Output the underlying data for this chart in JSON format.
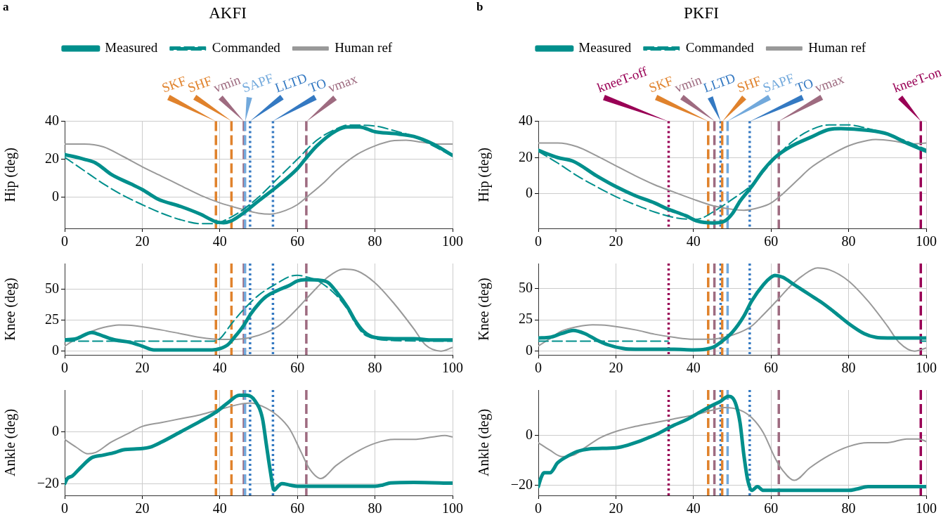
{
  "chart_data": [
    {
      "type": "line",
      "title": "AKFI",
      "ylabel": "Hip (deg)",
      "annotations": [
        "a"
      ],
      "legend": "top",
      "grid": true,
      "xlim": [
        0,
        100
      ],
      "xticks": [
        0,
        20,
        40,
        60,
        80,
        100
      ],
      "ylim": [
        -16.5,
        40
      ],
      "yticks": [
        0,
        20,
        40
      ],
      "series": [
        {
          "name": "Measured",
          "color": "#008f8c",
          "x": [
            0,
            5,
            8,
            12,
            17,
            20,
            24,
            30,
            35,
            39,
            41,
            43,
            45,
            47,
            50,
            55,
            60,
            62,
            65,
            70,
            73,
            76,
            80,
            85,
            90,
            95,
            100
          ],
          "values": [
            22.5,
            20,
            18,
            12,
            7,
            4,
            -1,
            -5,
            -9,
            -13,
            -13.5,
            -12.5,
            -10,
            -7,
            -2,
            6,
            15,
            20,
            27,
            35,
            37,
            37,
            34.5,
            33.5,
            32,
            28,
            22
          ]
        },
        {
          "name": "Commanded",
          "color": "#008f8c",
          "line_style": "dashed",
          "x": [
            0,
            5,
            10,
            15,
            20,
            25,
            30,
            35,
            39,
            41,
            45,
            50,
            55,
            60,
            65,
            70,
            73,
            80,
            85,
            90,
            95,
            100
          ],
          "values": [
            21,
            14,
            7,
            1,
            -4,
            -8.5,
            -12,
            -14,
            -14,
            -12.5,
            -8,
            0,
            10,
            20,
            30,
            36,
            38,
            37.5,
            35,
            32,
            27,
            21.5
          ]
        },
        {
          "name": "Human ref",
          "color": "#999999",
          "x": [
            0,
            5,
            10,
            15,
            20,
            25,
            30,
            35,
            40,
            45,
            50,
            53,
            57,
            60,
            63,
            67,
            70,
            75,
            80,
            85,
            88,
            92,
            96,
            100
          ],
          "values": [
            28,
            28,
            26.5,
            21.5,
            16,
            11,
            6,
            1,
            -3,
            -6,
            -8.5,
            -9,
            -7,
            -4,
            1,
            8,
            14,
            22,
            27,
            29.8,
            30,
            29,
            28,
            28
          ]
        }
      ],
      "ref_lines": [
        {
          "axis": "x",
          "value": 39,
          "label": "SKF",
          "color": "#e0822c",
          "line_style": "dashed"
        },
        {
          "axis": "x",
          "value": 43,
          "label": "SHF",
          "color": "#e0822c",
          "line_style": "dashed"
        },
        {
          "axis": "x",
          "value": 46.2,
          "label": "vmin",
          "color": "#9e6b80",
          "line_style": "dashed"
        },
        {
          "axis": "x",
          "value": 46.5,
          "label": "SAPF",
          "color": "#72a9dc",
          "line_style": "dashed"
        },
        {
          "axis": "x",
          "value": 47.8,
          "label": "LLTD",
          "color": "#3479c2",
          "line_style": "dotted"
        },
        {
          "axis": "x",
          "value": 53.7,
          "label": "TO",
          "color": "#3479c2",
          "line_style": "dotted"
        },
        {
          "axis": "x",
          "value": 62.3,
          "label": "vmax",
          "color": "#9e6b80",
          "line_style": "dashed"
        }
      ]
    },
    {
      "type": "line",
      "ylabel": "Knee (deg)",
      "grid": true,
      "xlim": [
        0,
        100
      ],
      "xticks": [
        0,
        20,
        40,
        60,
        80,
        100
      ],
      "ylim": [
        -3,
        70.5
      ],
      "yticks": [
        0,
        25,
        50
      ],
      "series": [
        {
          "color": "#008f8c",
          "x": [
            0,
            3,
            7,
            10,
            13,
            17,
            20,
            23,
            30,
            38,
            40,
            42,
            44,
            46,
            48,
            50,
            52,
            55,
            58,
            60,
            62,
            66,
            68,
            70,
            73,
            75,
            77,
            80,
            85,
            90,
            95,
            100
          ],
          "values": [
            9,
            10,
            15,
            12,
            9,
            7,
            4,
            1,
            1,
            1,
            2,
            5,
            12,
            20,
            30,
            38,
            44,
            49,
            53,
            56.5,
            57.5,
            57,
            55,
            48,
            35,
            24,
            16,
            11,
            10,
            10,
            9,
            9
          ]
        },
        {
          "color": "#008f8c",
          "line_style": "dashed",
          "x": [
            0,
            38,
            40,
            43,
            46,
            50,
            55,
            58,
            60,
            62,
            65,
            70,
            73,
            75,
            77,
            80,
            85,
            100
          ],
          "values": [
            8,
            8,
            10,
            22,
            33,
            45,
            55,
            60,
            61,
            60,
            57,
            45,
            33,
            22,
            14,
            10,
            8.5,
            8
          ]
        },
        {
          "color": "#999999",
          "x": [
            0,
            3,
            7,
            10,
            14,
            18,
            25,
            30,
            35,
            40,
            44,
            48,
            52,
            55,
            58,
            62,
            65,
            68,
            72,
            75,
            80,
            85,
            90,
            93,
            97,
            100
          ],
          "values": [
            4,
            10,
            16,
            19,
            21,
            20.5,
            17,
            14,
            11,
            9.5,
            9.5,
            11,
            15,
            20,
            28,
            41,
            51,
            60,
            66,
            65,
            55,
            38,
            18,
            5,
            0,
            3
          ]
        }
      ],
      "ref_lines": [
        {
          "axis": "x",
          "value": 39,
          "color": "#e0822c",
          "line_style": "dashed"
        },
        {
          "axis": "x",
          "value": 43,
          "color": "#e0822c",
          "line_style": "dashed"
        },
        {
          "axis": "x",
          "value": 46.2,
          "color": "#9e6b80",
          "line_style": "dashed"
        },
        {
          "axis": "x",
          "value": 46.5,
          "color": "#72a9dc",
          "line_style": "dashed"
        },
        {
          "axis": "x",
          "value": 47.8,
          "color": "#3479c2",
          "line_style": "dotted"
        },
        {
          "axis": "x",
          "value": 53.7,
          "color": "#3479c2",
          "line_style": "dotted"
        },
        {
          "axis": "x",
          "value": 62.3,
          "color": "#9e6b80",
          "line_style": "dashed"
        }
      ]
    },
    {
      "type": "line",
      "ylabel": "Ankle (deg)",
      "grid": true,
      "xlim": [
        0,
        100
      ],
      "xticks": [
        0,
        20,
        40,
        60,
        80,
        100
      ],
      "ylim": [
        -24.5,
        16
      ],
      "yticks": [
        -20,
        0
      ],
      "series": [
        {
          "color": "#008f8c",
          "x": [
            0,
            0.7,
            2,
            4,
            7,
            10,
            13,
            15,
            20,
            22,
            25,
            30,
            35,
            39,
            42,
            45,
            47,
            49,
            51,
            52,
            53,
            54,
            55,
            56,
            58,
            60,
            70,
            80,
            82,
            84,
            90,
            100
          ],
          "values": [
            -20,
            -18,
            -17,
            -14,
            -10,
            -9,
            -8,
            -7,
            -6.5,
            -6,
            -4,
            0,
            4,
            7.5,
            11,
            14,
            14,
            12,
            5,
            -5,
            -15,
            -22.5,
            -21,
            -20,
            -20.5,
            -21,
            -21,
            -21,
            -20.5,
            -19.7,
            -19.5,
            -19.8
          ]
        },
        {
          "color": "#999999",
          "x": [
            0,
            3,
            6,
            8,
            12,
            16,
            20,
            25,
            30,
            35,
            40,
            45,
            48,
            52,
            55,
            58,
            61,
            63,
            66,
            70,
            75,
            80,
            85,
            90,
            95,
            98,
            100
          ],
          "values": [
            -3,
            -6,
            -8.5,
            -8,
            -4,
            -1,
            2,
            3.5,
            5,
            6.5,
            8.5,
            10.5,
            11,
            9,
            6,
            1,
            -8,
            -14,
            -18,
            -13,
            -8,
            -4.5,
            -3,
            -3,
            -2,
            -1.5,
            -2
          ]
        }
      ],
      "ref_lines": [
        {
          "axis": "x",
          "value": 39,
          "color": "#e0822c",
          "line_style": "dashed"
        },
        {
          "axis": "x",
          "value": 43,
          "color": "#e0822c",
          "line_style": "dashed"
        },
        {
          "axis": "x",
          "value": 46.2,
          "color": "#9e6b80",
          "line_style": "dashed"
        },
        {
          "axis": "x",
          "value": 46.5,
          "color": "#72a9dc",
          "line_style": "dashed"
        },
        {
          "axis": "x",
          "value": 47.8,
          "color": "#3479c2",
          "line_style": "dotted"
        },
        {
          "axis": "x",
          "value": 53.7,
          "color": "#3479c2",
          "line_style": "dotted"
        },
        {
          "axis": "x",
          "value": 62.3,
          "color": "#9e6b80",
          "line_style": "dashed"
        }
      ]
    },
    {
      "type": "line",
      "title": "PKFI",
      "ylabel": "Hip (deg)",
      "annotations": [
        "b"
      ],
      "legend": "top",
      "grid": true,
      "xlim": [
        0,
        100
      ],
      "xticks": [
        0,
        20,
        40,
        60,
        80,
        100
      ],
      "ylim": [
        -19,
        40
      ],
      "yticks": [
        0,
        20,
        40
      ],
      "series": [
        {
          "name": "Measured",
          "color": "#008f8c",
          "x": [
            0,
            5,
            9,
            15,
            20,
            25,
            30,
            33,
            38,
            41,
            45,
            48,
            50,
            52,
            55,
            58,
            61,
            65,
            70,
            75,
            78,
            85,
            90,
            95,
            100
          ],
          "values": [
            24,
            20,
            18,
            10,
            4,
            -1,
            -5,
            -8,
            -12,
            -15,
            -16,
            -15,
            -11,
            -4,
            4,
            13,
            20,
            26,
            31,
            35.5,
            36,
            35,
            33,
            28,
            23.5
          ]
        },
        {
          "name": "Commanded",
          "color": "#008f8c",
          "line_style": "dashed",
          "x": [
            0,
            5,
            10,
            15,
            20,
            25,
            30,
            35,
            40,
            42,
            45,
            50,
            55,
            60,
            65,
            70,
            75,
            80,
            85,
            90,
            95,
            100
          ],
          "values": [
            23.5,
            17,
            10,
            4,
            -1.5,
            -6,
            -10,
            -13,
            -14,
            -13.5,
            -10,
            -3,
            5,
            17,
            28,
            35,
            38,
            38,
            36,
            33,
            29,
            24.5
          ]
        },
        {
          "name": "Human ref",
          "color": "#999999",
          "x": [
            0,
            5,
            10,
            15,
            20,
            25,
            30,
            35,
            40,
            45,
            50,
            53,
            57,
            60,
            63,
            67,
            70,
            75,
            80,
            85,
            87,
            92,
            96,
            100
          ],
          "values": [
            28,
            28,
            26,
            21,
            15.5,
            10,
            5,
            1,
            -3,
            -6.5,
            -8.5,
            -9,
            -7.5,
            -5,
            0,
            8,
            14,
            21,
            26.5,
            29.5,
            30,
            29,
            27.5,
            28
          ]
        }
      ],
      "ref_lines": [
        {
          "axis": "x",
          "value": 33.6,
          "label": "kneeT-off",
          "color": "#990055",
          "line_style": "dotted"
        },
        {
          "axis": "x",
          "value": 43.8,
          "label": "SKF",
          "color": "#e0822c",
          "line_style": "dashed"
        },
        {
          "axis": "x",
          "value": 45.4,
          "label": "vmin",
          "color": "#9e6b80",
          "line_style": "dashed"
        },
        {
          "axis": "x",
          "value": 47,
          "label": "LLTD",
          "color": "#3479c2",
          "line_style": "dotted"
        },
        {
          "axis": "x",
          "value": 47.4,
          "label": "SHF",
          "color": "#e0822c",
          "line_style": "dashed"
        },
        {
          "axis": "x",
          "value": 48.8,
          "label": "SAPF",
          "color": "#72a9dc",
          "line_style": "dashed"
        },
        {
          "axis": "x",
          "value": 54.5,
          "label": "TO",
          "color": "#3479c2",
          "line_style": "dotted"
        },
        {
          "axis": "x",
          "value": 62,
          "label": "vmax",
          "color": "#9e6b80",
          "line_style": "dashed"
        },
        {
          "axis": "x",
          "value": 98.6,
          "label": "kneeT-on",
          "color": "#990055",
          "line_style": "dashed"
        }
      ]
    },
    {
      "type": "line",
      "ylabel": "Knee (deg)",
      "grid": true,
      "xlim": [
        0,
        100
      ],
      "xticks": [
        0,
        20,
        40,
        60,
        80,
        100
      ],
      "ylim": [
        -3,
        70
      ],
      "yticks": [
        0,
        25,
        50
      ],
      "series": [
        {
          "color": "#008f8c",
          "x": [
            0,
            3,
            6,
            9,
            12,
            15,
            18,
            22,
            25,
            35,
            40,
            43,
            45,
            47,
            50,
            53,
            55,
            58,
            60,
            61,
            63,
            66,
            70,
            73,
            76,
            80,
            84,
            87,
            90,
            100
          ],
          "values": [
            10.5,
            11,
            14,
            16.5,
            14,
            9,
            5,
            2,
            1.5,
            1.5,
            1,
            1.5,
            3,
            7,
            15,
            28,
            40,
            53,
            59,
            60.5,
            59,
            53,
            45,
            39,
            32,
            22,
            14,
            11,
            10.5,
            10.5
          ]
        },
        {
          "color": "#008f8c",
          "line_style": "dashed",
          "x": [
            0,
            33.5,
            66,
            98.6,
            100
          ],
          "values": [
            8,
            8,
            null,
            8,
            8
          ]
        },
        {
          "color": "#999999",
          "x": [
            0,
            3,
            6,
            10,
            14,
            18,
            25,
            30,
            35,
            40,
            44,
            48,
            52,
            55,
            58,
            62,
            65,
            68,
            72,
            75,
            80,
            85,
            90,
            93,
            97,
            100
          ],
          "values": [
            4,
            10,
            16,
            19.5,
            21,
            20.5,
            17,
            13.5,
            11,
            9.5,
            9.5,
            11,
            15,
            20,
            29,
            42,
            52,
            60,
            66.5,
            65,
            56,
            40,
            20,
            7,
            0,
            2.5
          ]
        }
      ],
      "ref_lines": [
        {
          "axis": "x",
          "value": 33.6,
          "color": "#990055",
          "line_style": "dotted"
        },
        {
          "axis": "x",
          "value": 43.8,
          "color": "#e0822c",
          "line_style": "dashed"
        },
        {
          "axis": "x",
          "value": 45.4,
          "color": "#9e6b80",
          "line_style": "dashed"
        },
        {
          "axis": "x",
          "value": 47,
          "color": "#3479c2",
          "line_style": "dotted"
        },
        {
          "axis": "x",
          "value": 47.4,
          "color": "#e0822c",
          "line_style": "dashed"
        },
        {
          "axis": "x",
          "value": 48.8,
          "color": "#72a9dc",
          "line_style": "dashed"
        },
        {
          "axis": "x",
          "value": 54.5,
          "color": "#3479c2",
          "line_style": "dotted"
        },
        {
          "axis": "x",
          "value": 62,
          "color": "#9e6b80",
          "line_style": "dashed"
        },
        {
          "axis": "x",
          "value": 98.6,
          "color": "#990055",
          "line_style": "dashed"
        }
      ]
    },
    {
      "type": "line",
      "ylabel": "Ankle (deg)",
      "grid": true,
      "xlim": [
        0,
        100
      ],
      "xticks": [
        0,
        20,
        40,
        60,
        80,
        100
      ],
      "ylim": [
        -24,
        18
      ],
      "yticks": [
        -20,
        0
      ],
      "series": [
        {
          "color": "#008f8c",
          "x": [
            0,
            0.7,
            1.5,
            3,
            5,
            8,
            10,
            13,
            20,
            23,
            30,
            35,
            38,
            42,
            45,
            47,
            49,
            50,
            51,
            52,
            53,
            54,
            55,
            56.5,
            58,
            60,
            70,
            80,
            82,
            85,
            90,
            100
          ],
          "values": [
            -20.5,
            -17,
            -15,
            -15,
            -11,
            -8,
            -6.5,
            -5.5,
            -5,
            -4,
            0,
            4,
            6,
            9.5,
            12,
            13.5,
            15.5,
            15,
            12,
            5,
            -8,
            -18,
            -22,
            -20.5,
            -22,
            -22,
            -22,
            -22,
            -21.5,
            -20.5,
            -20.5,
            -20.5
          ]
        },
        {
          "color": "#999999",
          "x": [
            0,
            3,
            6,
            9,
            12,
            16,
            20,
            25,
            30,
            35,
            40,
            45,
            48,
            52,
            55,
            58,
            61,
            63,
            66,
            70,
            75,
            80,
            85,
            90,
            95,
            98,
            100
          ],
          "values": [
            -3,
            -6,
            -8.5,
            -8,
            -5,
            -1,
            1.5,
            3.5,
            5,
            6.5,
            8,
            10,
            11,
            10,
            7,
            1,
            -9,
            -14,
            -18,
            -13,
            -8,
            -4.5,
            -3,
            -3,
            -1.5,
            -1.5,
            -2.5
          ]
        }
      ],
      "ref_lines": [
        {
          "axis": "x",
          "value": 33.6,
          "color": "#990055",
          "line_style": "dotted"
        },
        {
          "axis": "x",
          "value": 43.8,
          "color": "#e0822c",
          "line_style": "dashed"
        },
        {
          "axis": "x",
          "value": 45.4,
          "color": "#9e6b80",
          "line_style": "dashed"
        },
        {
          "axis": "x",
          "value": 47,
          "color": "#3479c2",
          "line_style": "dotted"
        },
        {
          "axis": "x",
          "value": 47.4,
          "color": "#e0822c",
          "line_style": "dashed"
        },
        {
          "axis": "x",
          "value": 48.8,
          "color": "#72a9dc",
          "line_style": "dashed"
        },
        {
          "axis": "x",
          "value": 54.5,
          "color": "#3479c2",
          "line_style": "dotted"
        },
        {
          "axis": "x",
          "value": 62,
          "color": "#9e6b80",
          "line_style": "dashed"
        },
        {
          "axis": "x",
          "value": 98.6,
          "color": "#990055",
          "line_style": "dashed"
        }
      ]
    }
  ]
}
